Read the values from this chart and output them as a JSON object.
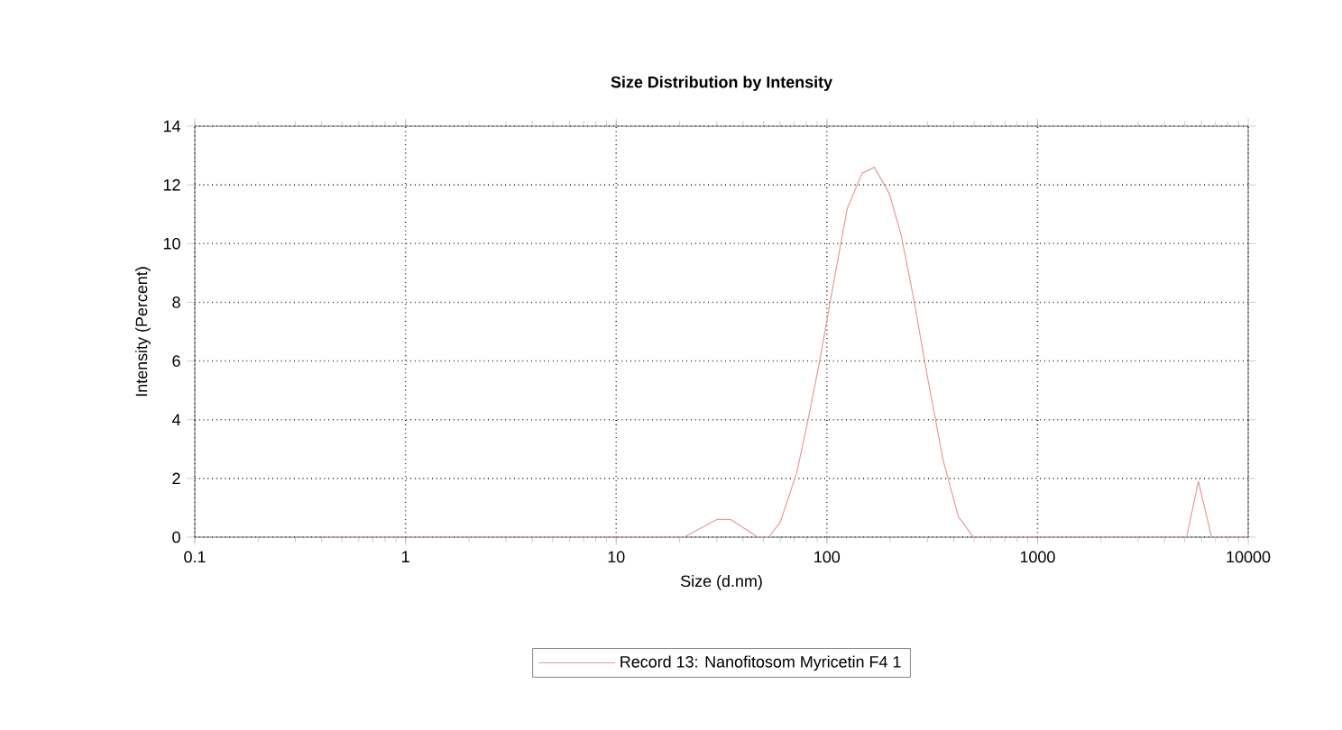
{
  "chart_data": {
    "type": "line",
    "title": "Size Distribution by Intensity",
    "xlabel": "Size (d.nm)",
    "ylabel": "Intensity (Percent)",
    "log": "x",
    "grid": true,
    "legend": "bottom",
    "line_style": "solid",
    "marker": "none",
    "xlim": [
      0.1,
      10000
    ],
    "xticks": [
      0.1,
      1,
      10,
      100,
      1000,
      10000
    ],
    "ylim": [
      0,
      14
    ],
    "yticks": [
      0,
      2,
      4,
      6,
      8,
      10,
      12,
      14
    ],
    "series": [
      {
        "name": "Record 13: Nanofitosom Myricetin F4 1",
        "color": "#e89a9a",
        "x": [
          0.4,
          21,
          30,
          35,
          47,
          53,
          60,
          72,
          82,
          93,
          106,
          125,
          147,
          168,
          198,
          225,
          257,
          303,
          357,
          421,
          496,
          5100,
          5800,
          6700,
          10000
        ],
        "values": [
          0,
          0,
          0.6,
          0.6,
          0,
          0,
          0.5,
          2.2,
          4.1,
          6.1,
          8.4,
          11.2,
          12.4,
          12.6,
          11.7,
          10.3,
          8.2,
          5.3,
          2.6,
          0.7,
          0,
          0,
          1.9,
          0,
          0
        ]
      }
    ]
  }
}
